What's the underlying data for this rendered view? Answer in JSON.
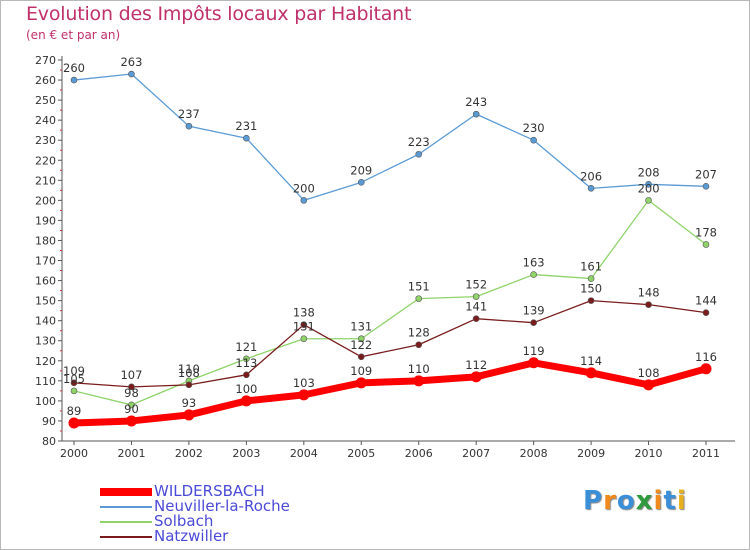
{
  "title": "Evolution des Impôts locaux par Habitant",
  "subtitle": "(en € et par an)",
  "brand": {
    "letters": [
      "P",
      "r",
      "o",
      "x",
      "i",
      "t",
      "i"
    ],
    "colors": [
      "#3a8fd8",
      "#f08a1c",
      "#3a8fd8",
      "#2f9a3c",
      "#f08a1c",
      "#3a8fd8",
      "#e8b01c"
    ]
  },
  "chart_data": {
    "type": "line",
    "x": [
      "2000",
      "2001",
      "2002",
      "2003",
      "2004",
      "2005",
      "2006",
      "2007",
      "2008",
      "2009",
      "2010",
      "2011"
    ],
    "ylim": [
      80,
      270
    ],
    "ytick_step": 10,
    "grid": false,
    "legend_position": "bottom-left",
    "series": [
      {
        "name": "WILDERSBACH",
        "color": "#ff0000",
        "values": [
          89,
          90,
          93,
          100,
          103,
          109,
          110,
          112,
          119,
          114,
          108,
          116
        ],
        "labels": [
          "89",
          "90",
          "93",
          "100",
          "103",
          "109",
          "110",
          "112",
          "119",
          "114",
          "108",
          "116"
        ]
      },
      {
        "name": "Neuviller-la-Roche",
        "color": "#5b9bd5",
        "values": [
          260,
          263,
          237,
          231,
          200,
          209,
          223,
          243,
          230,
          206,
          208,
          207
        ],
        "labels": [
          "260",
          "263",
          "237",
          "231",
          "200",
          "209",
          "223",
          "243",
          "230",
          "206",
          "208",
          "207"
        ]
      },
      {
        "name": "Solbach",
        "color": "#8fd36a",
        "values": [
          105,
          98,
          110,
          121,
          131,
          131,
          151,
          152,
          163,
          161,
          200,
          178
        ],
        "labels": [
          "105",
          "98",
          "110",
          "121",
          "131",
          "131",
          "151",
          "152",
          "163",
          "161",
          "200",
          "178"
        ]
      },
      {
        "name": "Natzwiller",
        "color": "#7a1c1c",
        "values": [
          109,
          107,
          108,
          113,
          138,
          122,
          128,
          141,
          139,
          150,
          148,
          144
        ],
        "labels": [
          "109",
          "107",
          "108",
          "113",
          "138",
          "122",
          "128",
          "141",
          "139",
          "150",
          "148",
          "144"
        ]
      }
    ]
  }
}
